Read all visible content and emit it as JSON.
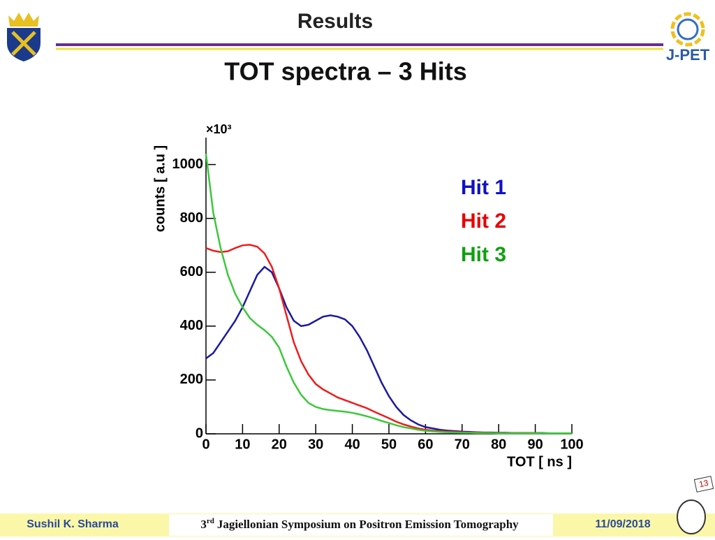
{
  "header": {
    "title": "Results",
    "logo_text": "J-PET"
  },
  "slide_title": "TOT spectra – 3 Hits",
  "footer": {
    "author": "Sushil K. Sharma",
    "event_number": "3",
    "event_suffix": "rd",
    "event_name": "Jagiellonian Symposium on Positron Emission Tomography",
    "date": "11/09/2018",
    "page": "13"
  },
  "chart_data": {
    "type": "line",
    "x_label": "TOT [ ns ]",
    "y_label": "counts [ a.u ]",
    "y_multiplier": "×10³",
    "x": [
      0,
      2,
      4,
      6,
      8,
      10,
      12,
      14,
      16,
      18,
      20,
      22,
      24,
      26,
      28,
      30,
      32,
      34,
      36,
      38,
      40,
      42,
      44,
      46,
      48,
      50,
      52,
      54,
      56,
      58,
      60,
      62,
      64,
      66,
      68,
      70,
      72,
      74,
      76,
      78,
      80,
      82,
      84,
      86,
      88,
      90,
      92,
      94,
      96,
      98,
      100
    ],
    "series": [
      {
        "name": "Hit 1",
        "color": "#1a1aa0",
        "values": [
          280,
          300,
          340,
          380,
          420,
          470,
          530,
          590,
          620,
          600,
          540,
          470,
          420,
          400,
          405,
          420,
          435,
          440,
          435,
          425,
          400,
          360,
          310,
          250,
          190,
          140,
          100,
          70,
          50,
          35,
          25,
          20,
          15,
          12,
          10,
          8,
          7,
          6,
          5,
          5,
          4,
          4,
          3,
          3,
          3,
          3,
          3,
          2,
          2,
          2,
          2
        ]
      },
      {
        "name": "Hit 2",
        "color": "#ee1c1c",
        "values": [
          690,
          680,
          675,
          678,
          690,
          700,
          702,
          695,
          670,
          620,
          540,
          440,
          340,
          270,
          220,
          185,
          165,
          150,
          135,
          125,
          115,
          105,
          95,
          82,
          70,
          58,
          45,
          35,
          27,
          20,
          15,
          12,
          10,
          8,
          7,
          6,
          5,
          5,
          4,
          4,
          3,
          3,
          3,
          3,
          3,
          3,
          2,
          2,
          2,
          2,
          2
        ]
      },
      {
        "name": "Hit 3",
        "color": "#3cc83c",
        "values": [
          1040,
          820,
          690,
          590,
          520,
          470,
          430,
          405,
          385,
          360,
          320,
          250,
          190,
          145,
          115,
          100,
          92,
          88,
          85,
          82,
          78,
          72,
          65,
          57,
          48,
          40,
          32,
          25,
          20,
          15,
          11,
          9,
          7,
          6,
          5,
          4,
          4,
          3,
          3,
          3,
          2,
          2,
          2,
          2,
          2,
          2,
          2,
          2,
          2,
          2,
          2
        ]
      }
    ],
    "xlim": [
      0,
      100
    ],
    "xticks": [
      0,
      10,
      20,
      30,
      40,
      50,
      60,
      70,
      80,
      90,
      100
    ],
    "ylim": [
      0,
      1100
    ],
    "yticks": [
      0,
      200,
      400,
      600,
      800,
      1000
    ],
    "legend_colors": [
      "#1010c8",
      "#e80000",
      "#10a010"
    ]
  }
}
